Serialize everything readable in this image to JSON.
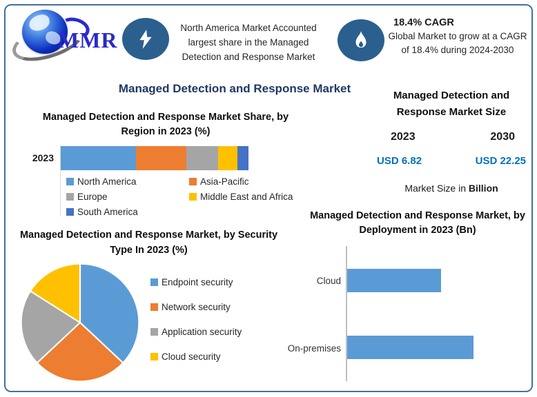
{
  "header": {
    "logo_text": "MMR",
    "note1": "North America Market Accounted largest share in the Managed Detection and Response Market",
    "cagr_title": "18.4% CAGR",
    "cagr_text": "Global Market to grow at a CAGR of 18.4% during 2024-2030"
  },
  "main_title": "Managed Detection and Response Market",
  "market_size_panel": {
    "title": "Managed Detection and Response Market Size",
    "year_left": "2023",
    "year_right": "2030",
    "value_left": "USD 6.82",
    "value_right": "USD 22.25",
    "note_prefix": "Market Size in ",
    "note_bold": "Billion"
  },
  "colors": {
    "frame_border": "#41719C",
    "title_navy": "#1F3864",
    "icon_circle_blue": "#2B5F8E",
    "usd_value_blue": "#0070C0",
    "primary_bar_blue": "#5B9BD5"
  },
  "chart_data": [
    {
      "type": "bar",
      "variant": "stacked-horizontal",
      "title": "Managed Detection and Response Market Share, by Region in 2023 (%)",
      "categories": [
        "2023"
      ],
      "series": [
        {
          "name": "North America",
          "values": [
            40
          ],
          "color": "#5B9BD5"
        },
        {
          "name": "Asia-Pacific",
          "values": [
            27
          ],
          "color": "#ED7D31"
        },
        {
          "name": "Europe",
          "values": [
            17
          ],
          "color": "#A5A5A5"
        },
        {
          "name": "Middle East and Africa",
          "values": [
            10
          ],
          "color": "#FFC000"
        },
        {
          "name": "South America",
          "values": [
            6
          ],
          "color": "#4472C4"
        }
      ],
      "unit": "%",
      "legend_position": "bottom",
      "grid": false
    },
    {
      "type": "pie",
      "title": "Managed Detection and Response Market, by Security Type In 2023 (%)",
      "labels": [
        "Endpoint security",
        "Network security",
        "Application security",
        "Cloud security"
      ],
      "values": [
        37,
        26,
        21,
        16
      ],
      "colors": [
        "#5B9BD5",
        "#ED7D31",
        "#A5A5A5",
        "#FFC000"
      ],
      "unit": "%",
      "legend_position": "right",
      "start_angle_deg": 0,
      "direction": "clockwise"
    },
    {
      "type": "bar",
      "variant": "horizontal",
      "title": "Managed Detection and Response Market, by Deployment in 2023 (Bn)",
      "categories": [
        "Cloud",
        "On-premises"
      ],
      "values": [
        2.9,
        3.9
      ],
      "color": "#5B9BD5",
      "unit": "Bn",
      "grid": false,
      "axis_labels_shown": false
    }
  ]
}
